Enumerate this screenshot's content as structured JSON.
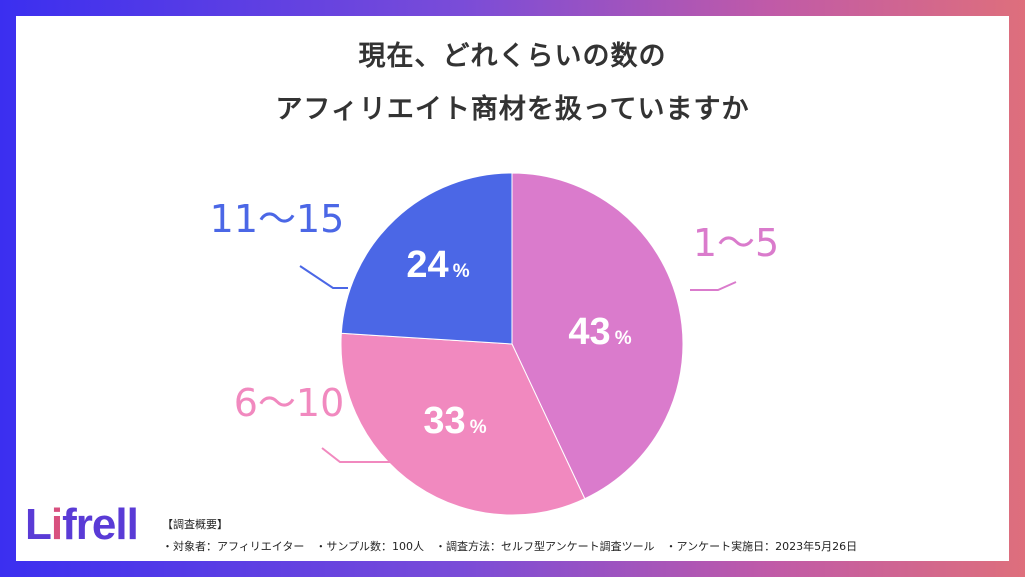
{
  "title": {
    "line1": "現在、どれくらいの数の",
    "line2": "アフィリエイト商材を扱っていますか"
  },
  "chart_data": {
    "type": "pie",
    "slices": [
      {
        "label": "1〜5",
        "value": 43,
        "display": "43",
        "color": "#da7bcc"
      },
      {
        "label": "6〜10",
        "value": 33,
        "display": "33",
        "color": "#f189bf"
      },
      {
        "label": "11〜15",
        "value": 24,
        "display": "24",
        "color": "#4b67e6"
      }
    ],
    "unit": "%",
    "start": "12 o'clock",
    "direction": "clockwise"
  },
  "logo": {
    "pre": "L",
    "i": "i",
    "post": "frell"
  },
  "summary": {
    "heading": "【調査概要】",
    "line": "・対象者：アフィリエイター　・サンプル数：100人　・調査方法：セルフ型アンケート調査ツール　・アンケート実施日：2023年5月26日"
  }
}
